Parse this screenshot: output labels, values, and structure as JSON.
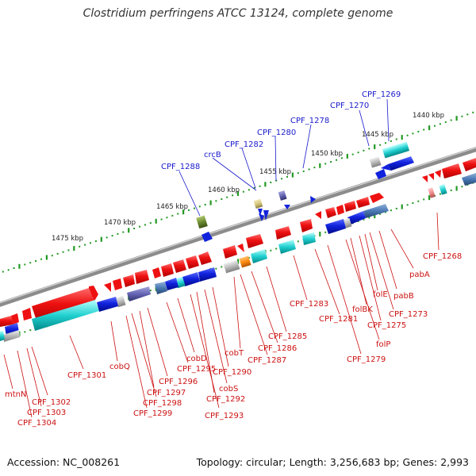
{
  "title": "Clostridium perfringens ATCC 13124, complete genome",
  "footer": {
    "accession": "Accession: NC_008261",
    "topology": "Topology: circular; Length: 3,256,683 bp; Genes: 2,993"
  },
  "scale_ticks": [
    "1440 kbp",
    "1445 kbp",
    "1450 kbp",
    "1455 kbp",
    "1460 kbp",
    "1465 kbp",
    "1470 kbp",
    "1475 kbp"
  ],
  "top_labels": [
    "CPF_1269",
    "CPF_1270",
    "CPF_1278",
    "CPF_1280",
    "CPF_1282",
    "crcB",
    "CPF_1288"
  ],
  "bottom_labels": [
    "CPF_1268",
    "pabA",
    "pabB",
    "CPF_1273",
    "folE",
    "CPF_1275",
    "folBK",
    "folP",
    "CPF_1279",
    "CPF_1281",
    "CPF_1283",
    "CPF_1285",
    "CPF_1286",
    "CPF_1287",
    "cobT",
    "CPF_1290",
    "cobS",
    "CPF_1292",
    "CPF_1293",
    "cobD",
    "CPF_1295",
    "CPF_1296",
    "CPF_1297",
    "CPF_1298",
    "CPF_1299",
    "cobQ",
    "CPF_1301",
    "CPF_1302",
    "CPF_1303",
    "CPF_1304",
    "mtnN"
  ],
  "colors": {
    "forward_genes": "#ee1111",
    "reverse_genes": "#1122dd",
    "top_labels": "#1a1acc",
    "bottom_labels": "#cc1111",
    "scale_ticks": "#228822",
    "backbone": "#8c8c8c"
  }
}
